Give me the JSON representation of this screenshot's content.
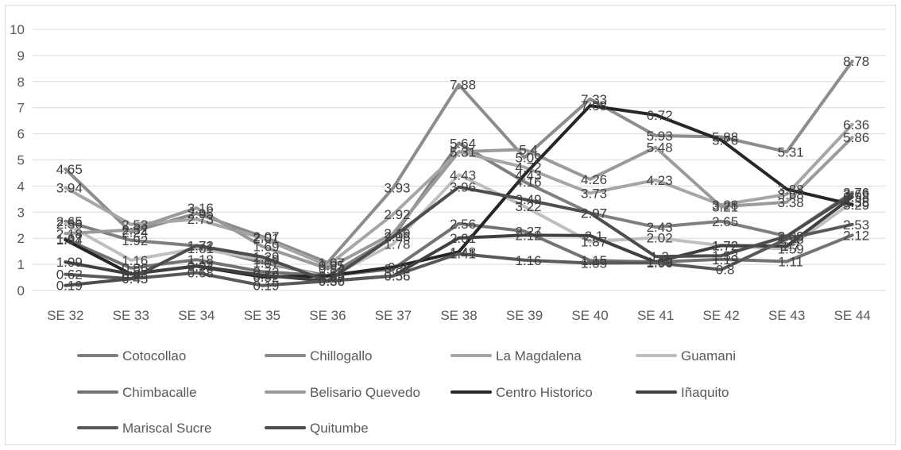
{
  "chart_data": {
    "type": "line",
    "title": "",
    "xlabel": "",
    "ylabel": "",
    "ylim": [
      0,
      10
    ],
    "yticks": [
      "0",
      "1",
      "2",
      "3",
      "4",
      "5",
      "6",
      "7",
      "8",
      "9",
      "10"
    ],
    "grid": "horizontal",
    "legend_position": "bottom",
    "categories": [
      "SE 32",
      "SE 33",
      "SE 34",
      "SE 35",
      "SE 36",
      "SE 37",
      "SE 38",
      "SE 39",
      "SE 40",
      "SE 41",
      "SE 42",
      "SE 43",
      "SE 44"
    ],
    "series": [
      {
        "name": "Cotocollao",
        "color": "#7f7f7f",
        "values": [
          2.65,
          1.92,
          1.71,
          1.07,
          0.56,
          2.06,
          5.64,
          4.16,
          2.97,
          2.43,
          2.65,
          2.08,
          3.76
        ]
      },
      {
        "name": "Chillogallo",
        "color": "#8c8c8c",
        "values": [
          4.65,
          2.24,
          2.95,
          2.07,
          1.07,
          3.93,
          7.88,
          5.09,
          7.33,
          5.93,
          5.88,
          5.31,
          8.78
        ]
      },
      {
        "name": "La Magdalena",
        "color": "#a6a6a6",
        "values": [
          3.94,
          2.53,
          2.73,
          2.01,
          0.95,
          2.92,
          5.31,
          4.72,
          3.73,
          4.23,
          3.28,
          3.68,
          6.36
        ]
      },
      {
        "name": "Guamani",
        "color": "#bfbfbf",
        "values": [
          2.56,
          1.16,
          1.61,
          1.19,
          0.47,
          1.78,
          4.43,
          3.22,
          1.87,
          2.02,
          1.72,
          1.59,
          3.38
        ]
      },
      {
        "name": "Chimbacalle",
        "color": "#737373",
        "values": [
          1.97,
          0.86,
          1.18,
          0.72,
          0.56,
          0.83,
          2.56,
          2.27,
          1.15,
          1.09,
          1.19,
          1.11,
          2.12
        ]
      },
      {
        "name": "Belisario Quevedo",
        "color": "#9a9a9a",
        "values": [
          2.18,
          2.32,
          3.16,
          1.69,
          0.84,
          2.19,
          5.31,
          5.4,
          4.26,
          5.48,
          3.21,
          3.38,
          5.86
        ]
      },
      {
        "name": "Centro Historico",
        "color": "#262626",
        "values": [
          1.94,
          0.63,
          0.93,
          0.52,
          0.56,
          0.9,
          1.48,
          4.43,
          7.08,
          6.72,
          5.76,
          3.88,
          3.29
        ]
      },
      {
        "name": "Iñaquito",
        "color": "#404040",
        "values": [
          1.09,
          0.63,
          0.94,
          0.59,
          0.36,
          0.56,
          2.01,
          2.12,
          2.1,
          1.09,
          1.72,
          1.7,
          3.58
        ]
      },
      {
        "name": "Mariscal Sucre",
        "color": "#595959",
        "values": [
          0.62,
          0.45,
          0.68,
          0.19,
          0.36,
          0.56,
          1.41,
          1.16,
          1.05,
          1.06,
          0.8,
          1.98,
          2.53
        ]
      },
      {
        "name": "Quitumbe",
        "color": "#4d4d4d",
        "values": [
          0.19,
          0.45,
          1.72,
          1.29,
          0.36,
          2.06,
          3.96,
          3.49,
          2.97,
          1.3,
          1.33,
          2.08,
          3.69
        ]
      }
    ]
  }
}
